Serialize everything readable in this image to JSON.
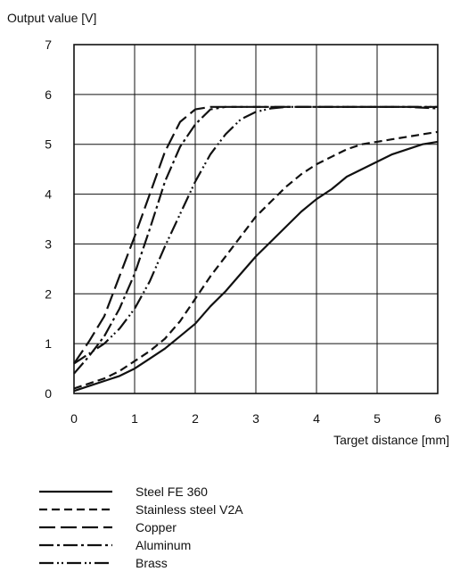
{
  "chart_data": {
    "type": "line",
    "title": "",
    "ylabel": "Output value [V]",
    "xlabel": "Target distance [mm]",
    "xlim": [
      0,
      6
    ],
    "ylim": [
      0,
      7
    ],
    "xticks": [
      "0",
      "1",
      "2",
      "3",
      "4",
      "5",
      "6"
    ],
    "yticks": [
      "0",
      "1",
      "2",
      "3",
      "4",
      "5",
      "6",
      "7"
    ],
    "grid": true,
    "legend_position": "bottom",
    "series": [
      {
        "name": "Steel FE 360",
        "line_style": "solid",
        "x": [
          0,
          0.25,
          0.5,
          0.75,
          1.0,
          1.25,
          1.5,
          1.75,
          2.0,
          2.25,
          2.5,
          2.75,
          3.0,
          3.25,
          3.5,
          3.75,
          4.0,
          4.25,
          4.5,
          4.75,
          5.0,
          5.25,
          5.5,
          5.75,
          6.0
        ],
        "y": [
          0.05,
          0.15,
          0.25,
          0.35,
          0.5,
          0.7,
          0.9,
          1.15,
          1.4,
          1.75,
          2.05,
          2.4,
          2.75,
          3.05,
          3.35,
          3.65,
          3.9,
          4.1,
          4.35,
          4.5,
          4.65,
          4.8,
          4.9,
          5.0,
          5.05
        ]
      },
      {
        "name": "Stainless steel V2A",
        "line_style": "dashed",
        "x": [
          0,
          0.25,
          0.5,
          0.75,
          1.0,
          1.25,
          1.5,
          1.75,
          2.0,
          2.25,
          2.5,
          2.75,
          3.0,
          3.25,
          3.5,
          3.75,
          4.0,
          4.25,
          4.5,
          4.75,
          5.0,
          5.25,
          5.5,
          5.75,
          6.0
        ],
        "y": [
          0.1,
          0.2,
          0.3,
          0.45,
          0.65,
          0.85,
          1.1,
          1.45,
          1.9,
          2.35,
          2.75,
          3.15,
          3.55,
          3.85,
          4.15,
          4.4,
          4.6,
          4.75,
          4.9,
          5.0,
          5.05,
          5.1,
          5.15,
          5.2,
          5.25
        ]
      },
      {
        "name": "Copper",
        "line_style": "long-dashed",
        "x": [
          0,
          0.25,
          0.5,
          0.75,
          1.0,
          1.25,
          1.5,
          1.75,
          2.0,
          2.25,
          2.5,
          3.0,
          3.5,
          4.0,
          4.5,
          5.0,
          5.5,
          6.0
        ],
        "y": [
          0.6,
          1.05,
          1.55,
          2.35,
          3.15,
          4.0,
          4.85,
          5.45,
          5.7,
          5.75,
          5.75,
          5.75,
          5.75,
          5.75,
          5.75,
          5.75,
          5.75,
          5.75
        ]
      },
      {
        "name": "Aluminum",
        "line_style": "dash-dot",
        "x": [
          0,
          0.25,
          0.5,
          0.75,
          1.0,
          1.25,
          1.5,
          1.75,
          2.0,
          2.25,
          2.5,
          3.0,
          3.5,
          4.0,
          4.5,
          5.0,
          5.5,
          6.0
        ],
        "y": [
          0.4,
          0.75,
          1.15,
          1.7,
          2.4,
          3.3,
          4.25,
          4.95,
          5.4,
          5.7,
          5.75,
          5.75,
          5.75,
          5.75,
          5.75,
          5.75,
          5.75,
          5.72
        ]
      },
      {
        "name": "Brass",
        "line_style": "dash-dot-dot",
        "x": [
          0,
          0.25,
          0.5,
          0.75,
          1.0,
          1.25,
          1.5,
          1.75,
          2.0,
          2.25,
          2.5,
          2.75,
          3.0,
          3.25,
          3.5,
          4.0,
          4.5,
          5.0,
          5.5,
          6.0
        ],
        "y": [
          0.6,
          0.8,
          1.0,
          1.3,
          1.7,
          2.25,
          2.95,
          3.6,
          4.25,
          4.8,
          5.2,
          5.5,
          5.65,
          5.72,
          5.75,
          5.75,
          5.75,
          5.75,
          5.75,
          5.75
        ]
      }
    ]
  }
}
